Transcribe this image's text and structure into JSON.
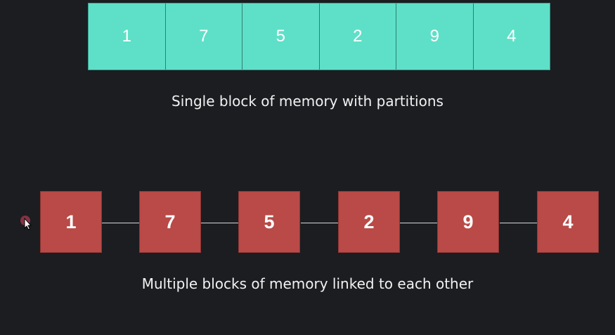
{
  "array": {
    "values": [
      "1",
      "7",
      "5",
      "2",
      "9",
      "4"
    ],
    "color": "#5ee0c8",
    "caption": "Single block of memory with partitions"
  },
  "linked_list": {
    "values": [
      "1",
      "7",
      "5",
      "2",
      "9",
      "4"
    ],
    "color": "#b94a47",
    "caption": "Multiple blocks of memory linked to each other"
  },
  "icons": {
    "cursor": "mouse-pointer-icon"
  }
}
